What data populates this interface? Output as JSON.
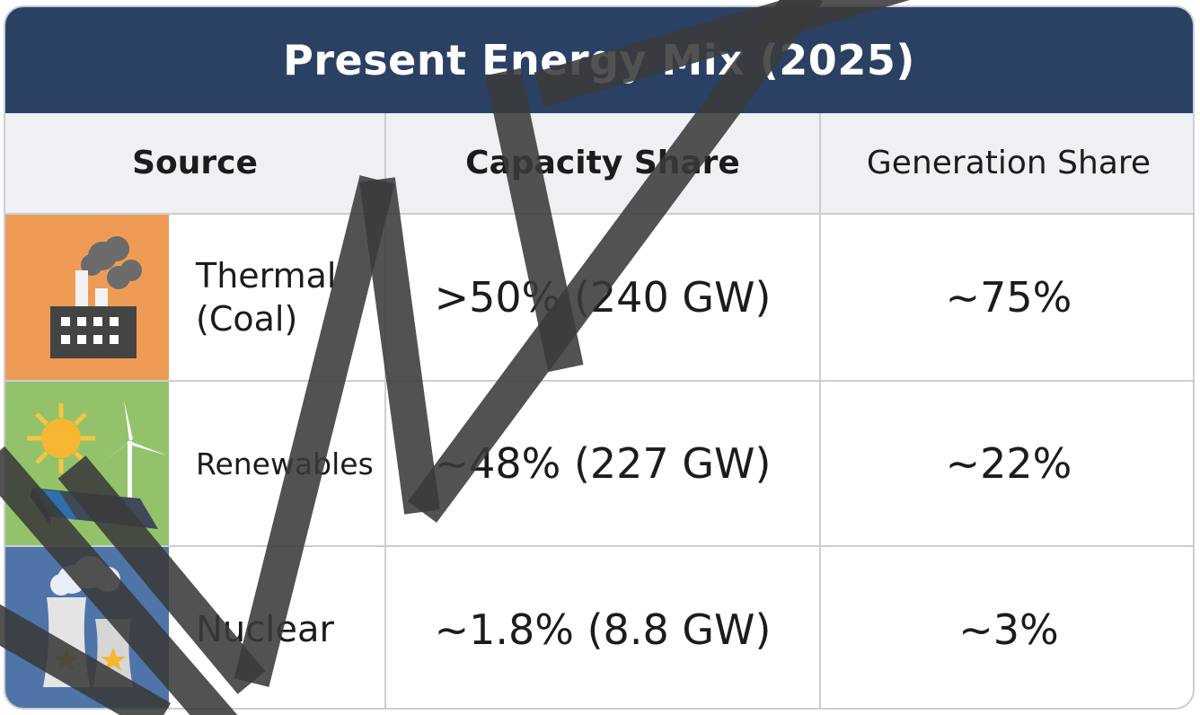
{
  "title": "Present Energy Mix (2025)",
  "headers": {
    "source": "Source",
    "capacity": "Capacity Share",
    "generation": "Generation Share"
  },
  "rows": [
    {
      "name_line1": "Thermal",
      "name_line2": "(Coal)",
      "capacity": ">50% (240 GW)",
      "generation": "~75%",
      "icon": "coal-factory-icon",
      "icon_bg": "#ee9c55"
    },
    {
      "name_line1": "Renewables",
      "capacity": "~48% (227 GW)",
      "generation": "~22%",
      "icon": "renewables-icon",
      "icon_bg": "#93c26b"
    },
    {
      "name_line1": "Nuclear",
      "capacity": "~1.8% (8.8 GW)",
      "generation": "~3%",
      "icon": "nuclear-plant-icon",
      "icon_bg": "#4f74a8"
    }
  ],
  "colors": {
    "title_bg": "#2b4164",
    "header_bg": "#eef0f3",
    "grid": "#c9ced6",
    "watermark": "#3a3a3a"
  }
}
